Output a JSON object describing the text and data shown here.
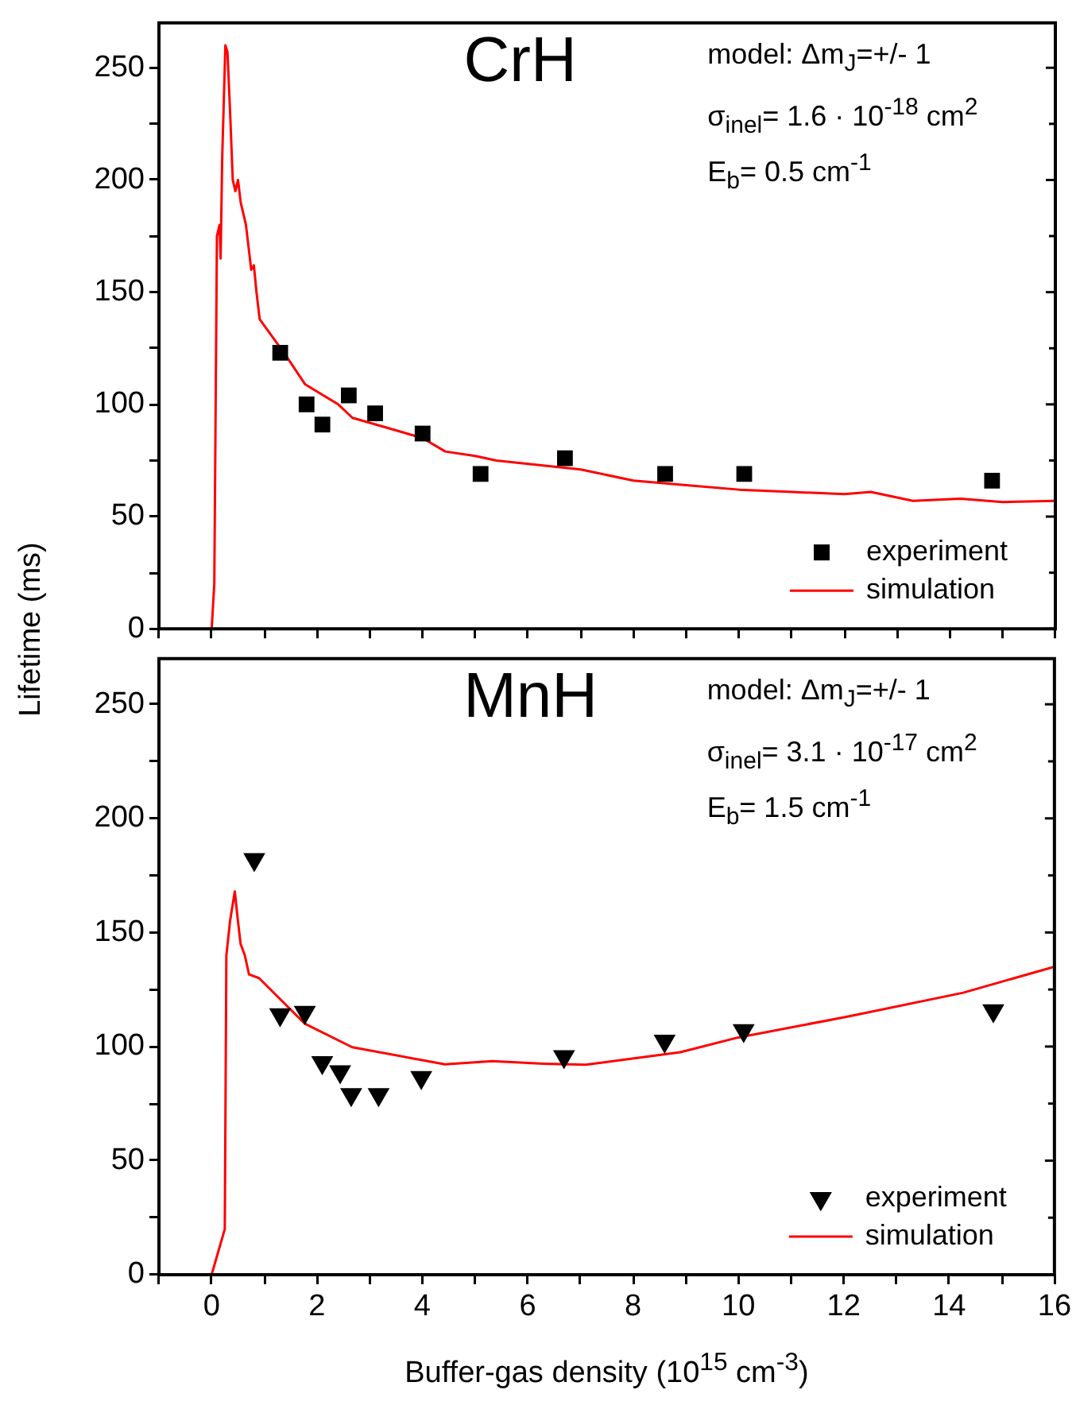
{
  "chart_data": [
    {
      "type": "scatter",
      "title": "CrH",
      "ylabel": "Lifetime (ms)",
      "annotations": [
        "model:  Δm$_{J}$=+/- 1",
        "σ$_{inel}$= 1.6 · 10$^{-18}$ cm$^{2}$",
        "E$_{b}$= 0.5 cm$^{-1}$"
      ],
      "series": [
        {
          "name": "experiment",
          "type": "scatter",
          "marker": "square",
          "color": "#000000",
          "x": [
            1.3,
            1.8,
            2.1,
            2.6,
            3.1,
            4.0,
            5.1,
            6.7,
            8.6,
            10.1,
            14.8
          ],
          "values": [
            123,
            100,
            91,
            104,
            96,
            87,
            69,
            76,
            69,
            69,
            66
          ]
        },
        {
          "name": "simulation",
          "type": "line",
          "marker": "none",
          "color": "#ff0000",
          "x": [
            0,
            0.05,
            0.1,
            0.15,
            0.17,
            0.2,
            0.26,
            0.3,
            0.35,
            0.4,
            0.45,
            0.5,
            0.55,
            0.65,
            0.7,
            0.75,
            0.8,
            0.85,
            0.91,
            1.4,
            1.77,
            2.4,
            2.67,
            4.0,
            4.43,
            5.0,
            5.4,
            7.0,
            8.0,
            9.0,
            10.0,
            11.0,
            12.0,
            12.5,
            13.3,
            14.2,
            15.0,
            16.0
          ],
          "values": [
            0,
            20,
            175,
            180,
            165,
            210,
            260,
            257,
            230,
            200,
            195,
            200,
            190,
            180,
            170,
            160,
            162,
            150,
            138,
            122,
            109,
            100,
            94,
            85,
            79,
            77,
            75,
            71,
            66,
            64,
            62,
            61,
            60,
            61,
            57,
            58,
            56.5,
            57
          ]
        }
      ],
      "xlim": [
        -1,
        16
      ],
      "xticks": [
        {
          "value": -1,
          "label": null
        },
        {
          "value": 0,
          "label": null
        },
        {
          "value": 1,
          "label": null
        },
        {
          "value": 2,
          "label": null
        },
        {
          "value": 3,
          "label": null
        },
        {
          "value": 4,
          "label": null
        },
        {
          "value": 5,
          "label": null
        },
        {
          "value": 6,
          "label": null
        },
        {
          "value": 7,
          "label": null
        },
        {
          "value": 8,
          "label": null
        },
        {
          "value": 9,
          "label": null
        },
        {
          "value": 10,
          "label": null
        },
        {
          "value": 11,
          "label": null
        },
        {
          "value": 12,
          "label": null
        },
        {
          "value": 13,
          "label": null
        },
        {
          "value": 14,
          "label": null
        },
        {
          "value": 15,
          "label": null
        },
        {
          "value": 16,
          "label": null
        }
      ],
      "ylim": [
        0,
        270
      ],
      "yticks": [
        0,
        {
          "value": 25,
          "label": null
        },
        50,
        {
          "value": 75,
          "label": null
        },
        100,
        {
          "value": 125,
          "label": null
        },
        150,
        {
          "value": 175,
          "label": null
        },
        200,
        {
          "value": 225,
          "label": null
        },
        250
      ],
      "tick_labels": "y",
      "legend": "bottom right"
    },
    {
      "type": "scatter",
      "title": "MnH",
      "xlabel": "Buffer-gas density (10$^{15}$ cm$^{-3}$)",
      "annotations": [
        "model:  Δm$_{J}$=+/- 1",
        "σ$_{inel}$= 3.1 · 10$^{-17}$ cm$^{2}$",
        "E$_{b}$= 1.5 cm$^{-1}$"
      ],
      "series": [
        {
          "name": "experiment",
          "type": "scatter",
          "marker": "triangle",
          "color": "#000000",
          "x": [
            0.81,
            1.3,
            1.77,
            2.1,
            2.44,
            2.65,
            3.17,
            3.98,
            6.69,
            8.6,
            10.1,
            14.84
          ],
          "values": [
            182,
            114,
            115,
            93,
            89,
            79,
            79,
            86.5,
            95.6,
            102.4,
            107,
            115.7
          ]
        },
        {
          "name": "simulation",
          "type": "line",
          "marker": "none",
          "color": "#ff0000",
          "x": [
            0,
            0.25,
            0.28,
            0.35,
            0.44,
            0.5,
            0.55,
            0.63,
            0.71,
            0.9,
            1.77,
            2.67,
            4.43,
            5.33,
            6.3,
            7.1,
            8.9,
            10.0,
            12.05,
            14.27,
            16.0
          ],
          "values": [
            0,
            20,
            140,
            155,
            168,
            155,
            145,
            140,
            131.6,
            130,
            110,
            99.7,
            92.2,
            93.6,
            92.5,
            92,
            97.5,
            104,
            113,
            123.6,
            135
          ]
        }
      ],
      "xlim": [
        -1,
        16
      ],
      "xticks": [
        {
          "value": -1,
          "label": null
        },
        0,
        {
          "value": 1,
          "label": null
        },
        2,
        {
          "value": 3,
          "label": null
        },
        4,
        {
          "value": 5,
          "label": null
        },
        6,
        {
          "value": 7,
          "label": null
        },
        8,
        {
          "value": 9,
          "label": null
        },
        10,
        {
          "value": 11,
          "label": null
        },
        12,
        {
          "value": 13,
          "label": null
        },
        14,
        {
          "value": 15,
          "label": null
        },
        16
      ],
      "ylim": [
        0,
        270
      ],
      "yticks": [
        0,
        {
          "value": 25,
          "label": null
        },
        50,
        {
          "value": 75,
          "label": null
        },
        100,
        {
          "value": 125,
          "label": null
        },
        150,
        {
          "value": 175,
          "label": null
        },
        200,
        {
          "value": 225,
          "label": null
        },
        250
      ],
      "legend": "bottom right"
    }
  ]
}
